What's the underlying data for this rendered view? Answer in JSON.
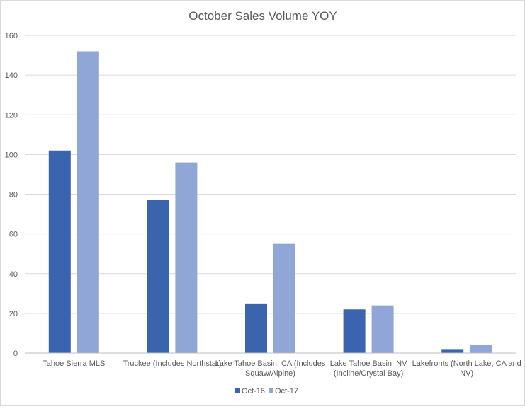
{
  "chart_data": {
    "type": "bar",
    "title": "October Sales Volume YOY",
    "xlabel": "",
    "ylabel": "",
    "categories": [
      [
        "Tahoe Sierra MLS"
      ],
      [
        "Truckee (Includes Northstar)"
      ],
      [
        "Lake Tahoe Basin, CA (Includes",
        "Squaw/Alpine)"
      ],
      [
        "Lake Tahoe Basin, NV",
        "(Incline/Crystal Bay)"
      ],
      [
        "Lakefronts (North Lake, CA and",
        "NV)"
      ]
    ],
    "series": [
      {
        "name": "Oct-16",
        "color": "#3a64ad",
        "values": [
          102,
          77,
          25,
          22,
          2
        ]
      },
      {
        "name": "Oct-17",
        "color": "#8fa6d6",
        "values": [
          152,
          96,
          55,
          24,
          4
        ]
      }
    ],
    "ylim": [
      0,
      160
    ],
    "yticks": [
      0,
      20,
      40,
      60,
      80,
      100,
      120,
      140,
      160
    ],
    "grid": true,
    "legend_position": "bottom"
  }
}
